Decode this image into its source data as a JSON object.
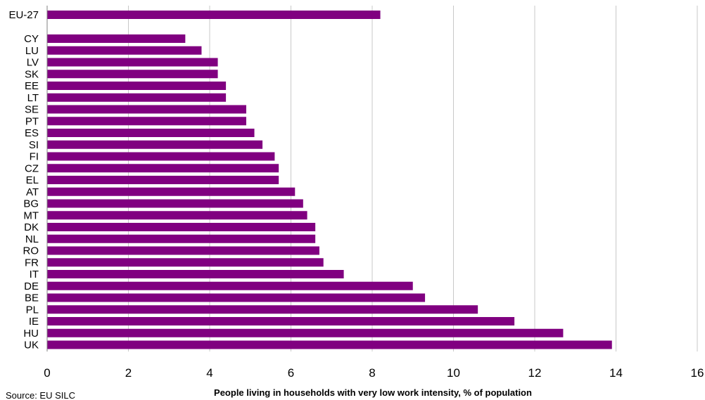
{
  "chart_data": {
    "type": "bar",
    "orientation": "horizontal",
    "categories": [
      "EU-27",
      "CY",
      "LU",
      "LV",
      "SK",
      "EE",
      "LT",
      "SE",
      "PT",
      "ES",
      "SI",
      "FI",
      "CZ",
      "EL",
      "AT",
      "BG",
      "MT",
      "DK",
      "NL",
      "RO",
      "FR",
      "IT",
      "DE",
      "BE",
      "PL",
      "IE",
      "HU",
      "UK"
    ],
    "values": [
      8.2,
      3.4,
      3.8,
      4.2,
      4.2,
      4.4,
      4.4,
      4.9,
      4.9,
      5.1,
      5.3,
      5.6,
      5.7,
      5.7,
      6.1,
      6.3,
      6.4,
      6.6,
      6.6,
      6.7,
      6.8,
      7.3,
      9.0,
      9.3,
      10.6,
      11.5,
      12.7,
      13.9
    ],
    "xlabel": "People living in households with very low work intensity, % of population",
    "xlim": [
      0,
      16
    ],
    "xticks": [
      0,
      2,
      4,
      6,
      8,
      10,
      12,
      14,
      16
    ],
    "grid": "vertical",
    "bar_color": "#800080",
    "grid_color": "#c8c8c8",
    "source": "Source: EU SILC"
  }
}
